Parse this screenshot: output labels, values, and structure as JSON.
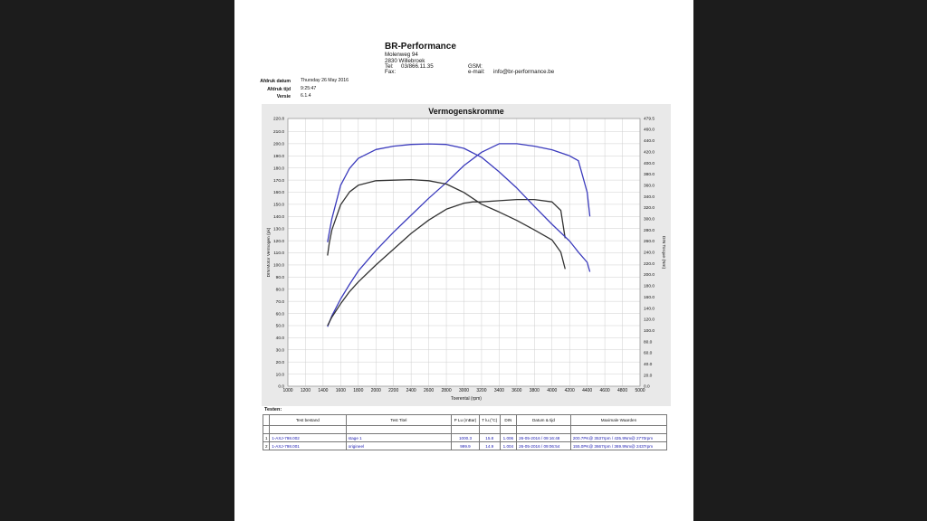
{
  "header": {
    "company": "BR-Performance",
    "address1": "Molenweg 94",
    "address2": "2830 Willebroek",
    "tel_label": "Tel:",
    "tel": "03/866.11.35",
    "fax_label": "Fax:",
    "gsm_label": "GSM:",
    "email_label": "e-mail:",
    "email": "info@br-performance.be"
  },
  "meta": {
    "print_date_label": "Afdruk datum",
    "print_date": "Thursday 26 May 2016",
    "print_time_label": "Afdruk tijd",
    "print_time": "9:25:47",
    "version_label": "Versie",
    "version": "6.1.4"
  },
  "chart_data": {
    "type": "line",
    "title": "Vermogenskromme",
    "xlabel": "Toerental (rpm)",
    "ylabel": "DIN Motor Vermogen (pk)",
    "y2label": "DIN Torque (Nm)",
    "xlim": [
      1000,
      5000
    ],
    "ylim": [
      0,
      220.8
    ],
    "y2lim": [
      0,
      479.5
    ],
    "x_ticks": [
      1000,
      1200,
      1400,
      1600,
      1800,
      2000,
      2200,
      2400,
      2600,
      2800,
      3000,
      3200,
      3400,
      3600,
      3800,
      4000,
      4200,
      4400,
      4600,
      4800,
      5000
    ],
    "y_ticks": [
      "0.0",
      "10.0",
      "20.0",
      "30.0",
      "40.0",
      "50.0",
      "60.0",
      "70.0",
      "80.0",
      "90.0",
      "100.0",
      "110.0",
      "120.0",
      "130.0",
      "140.0",
      "150.0",
      "160.0",
      "170.0",
      "180.0",
      "190.0",
      "200.0",
      "210.0",
      "220.8"
    ],
    "y2_ticks": [
      "0.0",
      "20.0",
      "40.0",
      "60.0",
      "80.0",
      "100.0",
      "120.0",
      "140.0",
      "160.0",
      "180.0",
      "200.0",
      "220.0",
      "240.0",
      "260.0",
      "280.0",
      "300.0",
      "320.0",
      "340.0",
      "360.0",
      "380.0",
      "400.0",
      "420.0",
      "440.0",
      "460.0",
      "479.5"
    ],
    "grid": true,
    "series": [
      {
        "axis": "power",
        "color": "#3b3bbd",
        "x": [
          1450,
          1500,
          1600,
          1700,
          1800,
          2000,
          2200,
          2400,
          2600,
          2800,
          2900,
          3000,
          3200,
          3400,
          3600,
          3800,
          4000,
          4200,
          4300,
          4400,
          4430
        ],
        "y": [
          49,
          58,
          72,
          84,
          95,
          112,
          127,
          141,
          155,
          168,
          175,
          182,
          193,
          200,
          200,
          198,
          195,
          190,
          186,
          160,
          140
        ]
      },
      {
        "axis": "power",
        "color": "#333333",
        "x": [
          1450,
          1500,
          1600,
          1700,
          1800,
          2000,
          2200,
          2400,
          2600,
          2800,
          3000,
          3100,
          3200,
          3400,
          3600,
          3800,
          4000,
          4100,
          4150
        ],
        "y": [
          50,
          57,
          68,
          78,
          86,
          100,
          113,
          126,
          137,
          146,
          151,
          152,
          152,
          153,
          154,
          154,
          152,
          145,
          122
        ]
      },
      {
        "axis": "torque",
        "color": "#3b3bbd",
        "x": [
          1450,
          1470,
          1500,
          1600,
          1700,
          1800,
          2000,
          2200,
          2400,
          2600,
          2800,
          3000,
          3200,
          3400,
          3600,
          3800,
          4000,
          4200,
          4300,
          4400,
          4430
        ],
        "y": [
          258,
          275,
          300,
          360,
          390,
          408,
          424,
          430,
          433,
          434,
          433,
          426,
          410,
          384,
          355,
          322,
          290,
          260,
          240,
          222,
          205
        ]
      },
      {
        "axis": "torque",
        "color": "#333333",
        "x": [
          1450,
          1470,
          1500,
          1600,
          1700,
          1800,
          2000,
          2200,
          2400,
          2600,
          2800,
          3000,
          3200,
          3400,
          3600,
          3800,
          4000,
          4100,
          4150
        ],
        "y": [
          234,
          256,
          280,
          325,
          348,
          360,
          368,
          369,
          370,
          368,
          362,
          347,
          326,
          312,
          297,
          280,
          262,
          240,
          210
        ]
      }
    ]
  },
  "tests": {
    "label": "Testen:",
    "headers": [
      "",
      "Test bestand",
      "Test Titel",
      "P Lu (mBar)",
      "T lu.(°C)",
      "DIN",
      "Datum & tijd",
      "Maximale Waarden"
    ],
    "rows": [
      [
        "1",
        "1-AXJ-798.002",
        "stage 1",
        "1000.3",
        "15.8",
        "1.006",
        "26-05-2016 / 09:16:48",
        "200.7PK@ 3537rpm / 435.9Nm@ 2770rpm"
      ],
      [
        "2",
        "1-AXJ-798.001",
        "origineel",
        "999.9",
        "14.9",
        "1.004",
        "26-05-2016 / 09:06:54",
        "155.0PK@ 3667rpm / 369.9Nm@ 2437rpm"
      ]
    ]
  }
}
